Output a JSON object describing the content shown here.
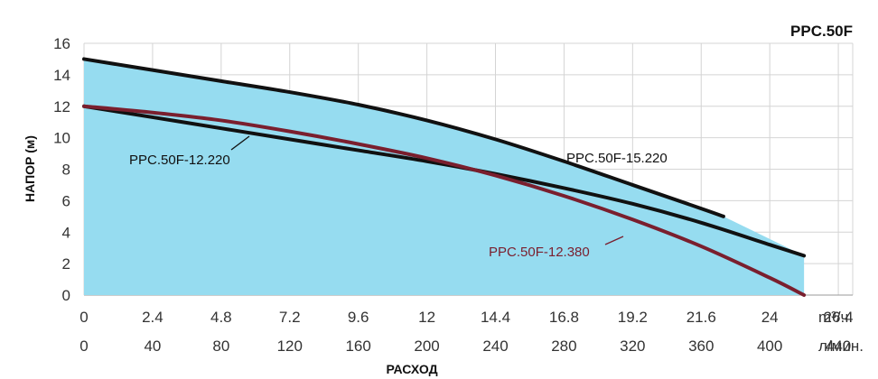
{
  "chart_data": {
    "type": "line",
    "title": "PPC.50F",
    "ylabel": "НАПОР (м)",
    "xlabel": "РАСХОД",
    "ylim": [
      0,
      16
    ],
    "yticks": [
      0,
      2,
      4,
      6,
      8,
      10,
      12,
      14,
      16
    ],
    "xlim": [
      0,
      420
    ],
    "x_unit_secondary": "л/мин.",
    "x_unit_primary": "m³/ч.",
    "xticks_lmin": [
      0,
      40,
      80,
      120,
      160,
      200,
      240,
      280,
      320,
      360,
      400,
      440
    ],
    "xticks_lmin_labels": [
      "0",
      "40",
      "80",
      "120",
      "160",
      "200",
      "240",
      "280",
      "320",
      "360",
      "400",
      "440"
    ],
    "xticks_m3h_labels": [
      "0",
      "2.4",
      "4.8",
      "7.2",
      "9.6",
      "12",
      "14.4",
      "16.8",
      "19.2",
      "21.6",
      "24",
      "26.4"
    ],
    "grid": true,
    "colors": {
      "area_fill": "#96dcf0",
      "curve_black": "#111111",
      "curve_red": "#7a1f2e",
      "grid": "#d4d4d4"
    },
    "series": [
      {
        "name": "PPC.50F-15.220",
        "color": "#111111",
        "x": [
          0,
          40,
          80,
          120,
          160,
          200,
          240,
          280,
          320,
          360,
          373
        ],
        "y": [
          15.0,
          14.3,
          13.6,
          12.9,
          12.1,
          11.1,
          9.9,
          8.5,
          7.0,
          5.5,
          5.0
        ]
      },
      {
        "name": "PPC.50F-12.220",
        "color": "#111111",
        "x": [
          0,
          40,
          80,
          120,
          160,
          200,
          240,
          280,
          320,
          360,
          400,
          420
        ],
        "y": [
          12.0,
          11.3,
          10.6,
          9.9,
          9.2,
          8.5,
          7.7,
          6.8,
          5.8,
          4.6,
          3.2,
          2.5
        ]
      },
      {
        "name": "PPC.50F-12.380",
        "color": "#7a1f2e",
        "x": [
          0,
          40,
          80,
          120,
          160,
          200,
          240,
          280,
          320,
          360,
          400,
          420
        ],
        "y": [
          12.0,
          11.6,
          11.1,
          10.4,
          9.6,
          8.7,
          7.6,
          6.3,
          4.8,
          3.1,
          1.1,
          0.0
        ]
      }
    ],
    "fill_envelope": {
      "upper_x": [
        0,
        40,
        80,
        120,
        160,
        200,
        240,
        280,
        320,
        360,
        373,
        420
      ],
      "upper_y": [
        15.0,
        14.3,
        13.6,
        12.9,
        12.1,
        11.1,
        9.9,
        8.5,
        7.0,
        5.5,
        5.0,
        2.5
      ],
      "right_edge_x": 420,
      "right_edge_y": [
        2.5,
        0.0
      ]
    }
  }
}
